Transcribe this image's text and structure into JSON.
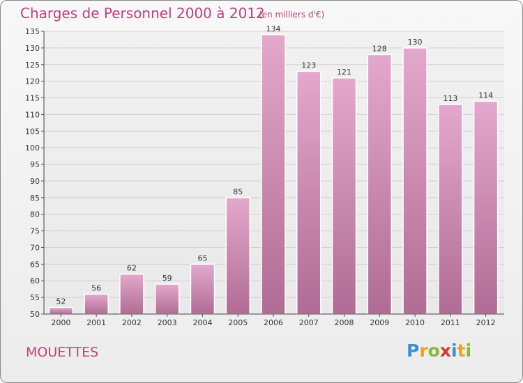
{
  "header": {
    "title": "Charges de Personnel 2000 à 2012",
    "subtitle": "(en milliers d'€)"
  },
  "footer": {
    "commune": "MOUETTES",
    "logo_text": "Proxiti"
  },
  "colors": {
    "bar_fill_top": "#e4a8cc",
    "bar_fill_bottom": "#b06c94",
    "title": "#c0407a"
  },
  "chart_data": {
    "type": "bar",
    "categories": [
      "2000",
      "2001",
      "2002",
      "2003",
      "2004",
      "2005",
      "2006",
      "2007",
      "2008",
      "2009",
      "2010",
      "2011",
      "2012"
    ],
    "values": [
      52,
      56,
      62,
      59,
      65,
      85,
      134,
      123,
      121,
      128,
      130,
      113,
      114
    ],
    "ylim": [
      50,
      135
    ],
    "yticks": [
      50,
      55,
      60,
      65,
      70,
      75,
      80,
      85,
      90,
      95,
      100,
      105,
      110,
      115,
      120,
      125,
      130,
      135
    ],
    "grid": true,
    "data_labels": true
  }
}
